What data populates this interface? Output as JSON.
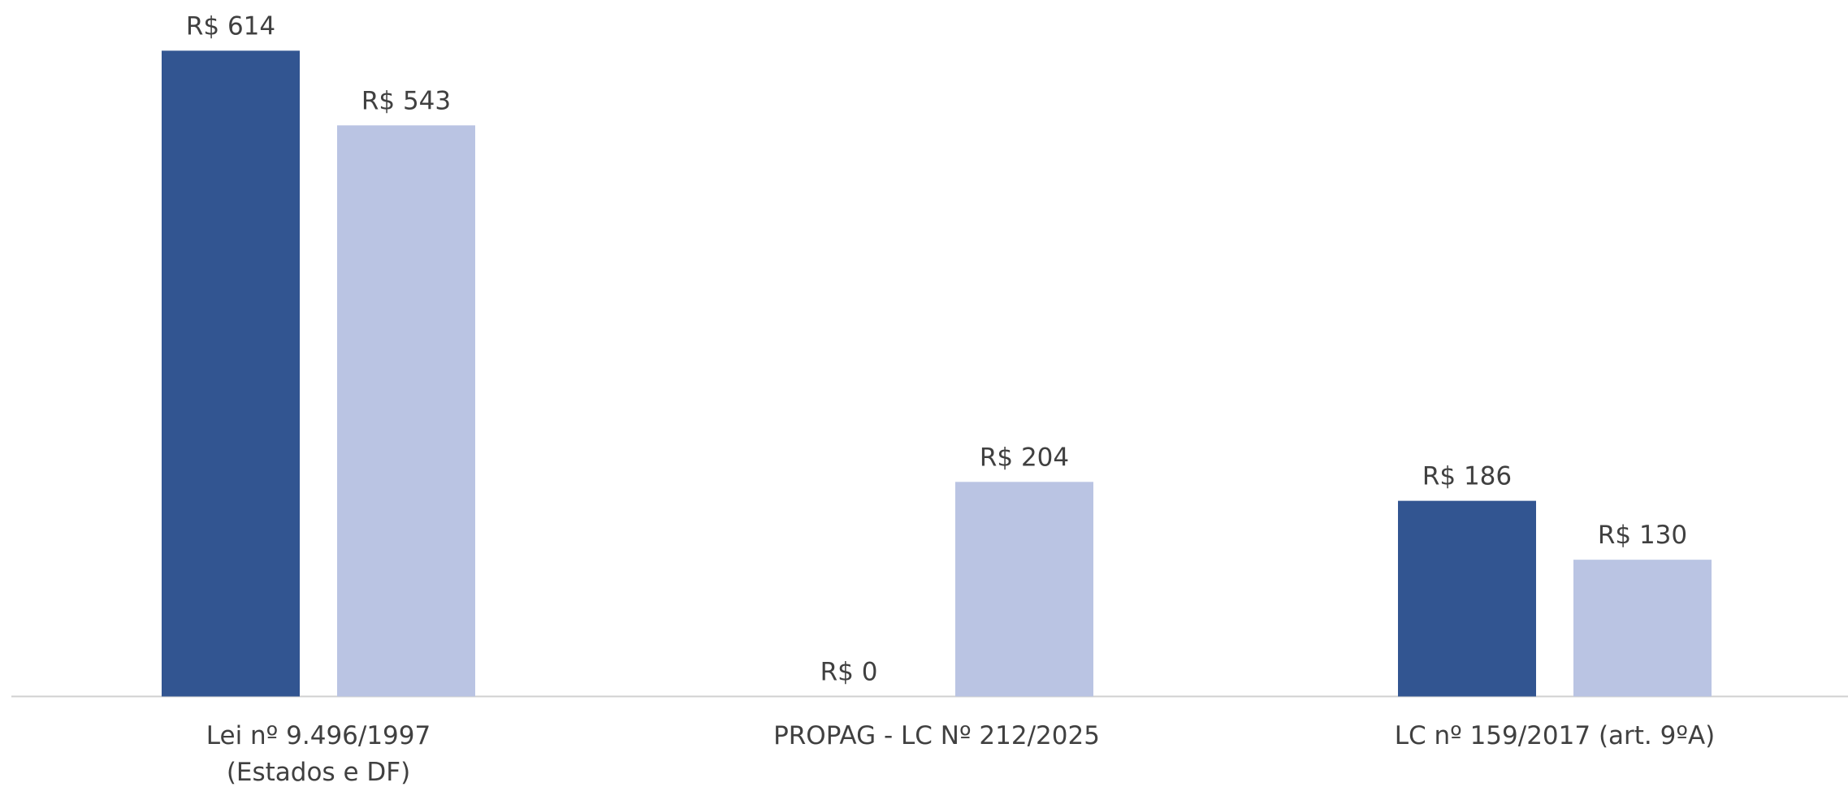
{
  "chart_data": {
    "type": "bar",
    "categories": [
      "Lei nº 9.496/1997\n(Estados e DF)",
      "PROPAG - LC Nº 212/2025",
      "LC nº 159/2017 (art. 9ºA)"
    ],
    "series": [
      {
        "color": "#325591",
        "values": [
          614,
          0,
          186
        ],
        "value_labels": [
          "R$ 614",
          "R$ 0",
          "R$ 186"
        ]
      },
      {
        "color": "#bac4e3",
        "values": [
          543,
          204,
          130
        ],
        "value_labels": [
          "R$ 543",
          "R$ 204",
          "R$ 130"
        ]
      }
    ],
    "ylim": [
      0,
      614
    ]
  }
}
